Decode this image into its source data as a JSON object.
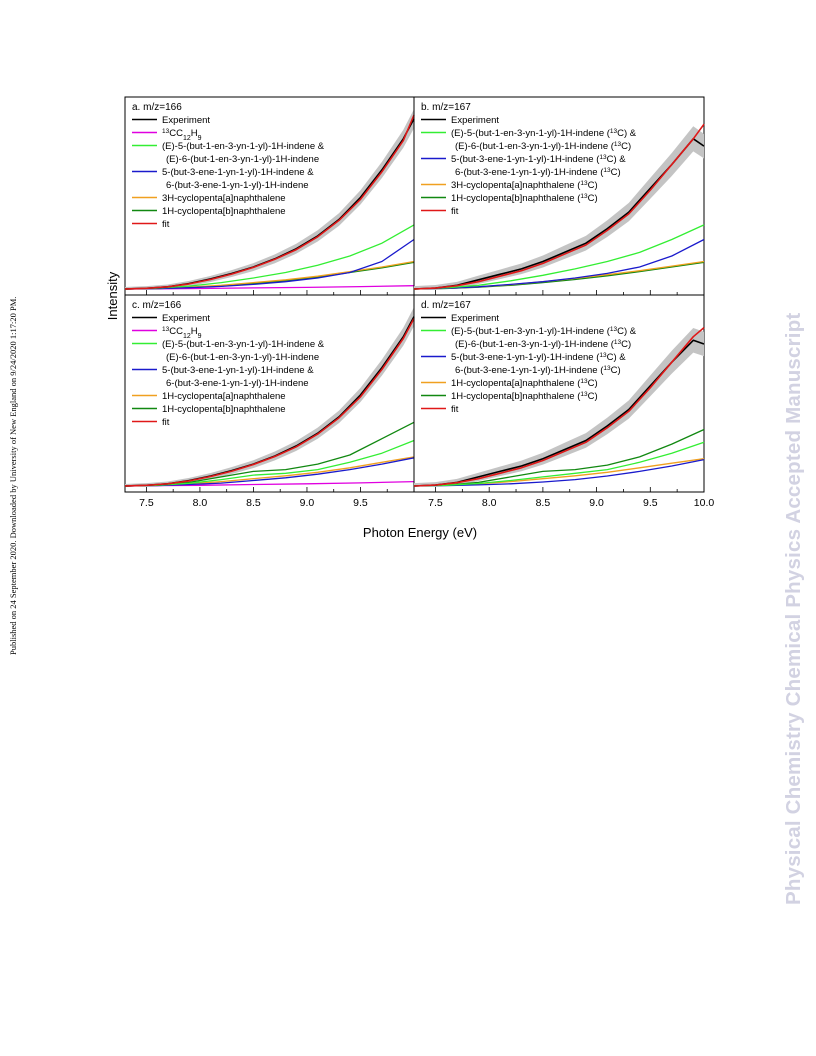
{
  "side_note": "Published on 24 September 2020. Downloaded by University of New England on 9/24/2020 1:17:20 PM.",
  "watermark": "Physical Chemistry Chemical Physics Accepted Manuscript",
  "figure": {
    "ylabel": "Intensity",
    "xlabel": "Photon Energy (eV)"
  },
  "colors": {
    "experiment": "#000000",
    "band": "#c4c4c4",
    "c13cc12h9": "#e000e0",
    "green_light": "#33ee33",
    "blue": "#1a1acc",
    "orange": "#f0a020",
    "green_dark": "#118811",
    "fit": "#e01818"
  },
  "chart_data": [
    {
      "type": "line",
      "panel": "a",
      "title": "a. m/z=166",
      "xlim": [
        7.3,
        10.0
      ],
      "x_ticks": [],
      "legend": [
        {
          "key": "experiment",
          "label": "Experiment"
        },
        {
          "key": "c13cc12h9",
          "label_sup": "13",
          "label": "CC",
          "label_sub1": "12",
          "label_mid": "H",
          "label_sub2": "9"
        },
        {
          "key": "green_light",
          "label": "(E)-5-(but-1-en-3-yn-1-yl)-1H-indene &",
          "label2": "(E)-6-(but-1-en-3-yn-1-yl)-1H-indene"
        },
        {
          "key": "blue",
          "label": "5-(but-3-ene-1-yn-1-yl)-1H-indene &",
          "label2": "6-(but-3-ene-1-yn-1-yl)-1H-indene"
        },
        {
          "key": "orange",
          "label": "3H-cyclopenta[a]naphthalene"
        },
        {
          "key": "green_dark",
          "label": "1H-cyclopenta[b]naphthalene"
        },
        {
          "key": "fit",
          "label": "fit"
        }
      ],
      "series": [
        {
          "key": "experiment",
          "x": [
            7.3,
            7.5,
            7.7,
            7.9,
            8.1,
            8.3,
            8.5,
            8.7,
            8.9,
            9.1,
            9.3,
            9.5,
            9.7,
            9.9,
            10.0
          ],
          "y": [
            0,
            0.004,
            0.012,
            0.03,
            0.055,
            0.085,
            0.12,
            0.165,
            0.22,
            0.29,
            0.38,
            0.5,
            0.65,
            0.82,
            0.93
          ],
          "band": 0.05
        },
        {
          "key": "c13cc12h9",
          "x": [
            7.3,
            7.6,
            8.0,
            8.5,
            9.0,
            9.5,
            10.0
          ],
          "y": [
            0,
            0.001,
            0.003,
            0.006,
            0.009,
            0.013,
            0.018
          ]
        },
        {
          "key": "green_light",
          "x": [
            7.3,
            7.6,
            7.9,
            8.2,
            8.5,
            8.8,
            9.1,
            9.4,
            9.7,
            10.0
          ],
          "y": [
            0,
            0.005,
            0.016,
            0.035,
            0.06,
            0.09,
            0.13,
            0.18,
            0.25,
            0.35
          ]
        },
        {
          "key": "blue",
          "x": [
            7.3,
            7.6,
            7.9,
            8.2,
            8.5,
            8.8,
            9.1,
            9.4,
            9.7,
            10.0
          ],
          "y": [
            0,
            0.002,
            0.007,
            0.014,
            0.025,
            0.04,
            0.06,
            0.09,
            0.15,
            0.27
          ]
        },
        {
          "key": "orange",
          "x": [
            7.3,
            7.6,
            7.9,
            8.2,
            8.5,
            8.8,
            9.1,
            9.4,
            9.7,
            10.0
          ],
          "y": [
            0,
            0.003,
            0.01,
            0.02,
            0.035,
            0.05,
            0.07,
            0.095,
            0.12,
            0.15
          ]
        },
        {
          "key": "green_dark",
          "x": [
            7.3,
            7.6,
            7.9,
            8.2,
            8.5,
            8.8,
            9.1,
            9.4,
            9.7,
            10.0
          ],
          "y": [
            0,
            0.002,
            0.008,
            0.016,
            0.03,
            0.045,
            0.065,
            0.09,
            0.115,
            0.145
          ]
        },
        {
          "key": "fit",
          "x": [
            7.3,
            7.5,
            7.7,
            7.9,
            8.1,
            8.3,
            8.5,
            8.7,
            8.9,
            9.1,
            9.3,
            9.5,
            9.7,
            9.9,
            10.0
          ],
          "y": [
            0,
            0.004,
            0.012,
            0.028,
            0.052,
            0.082,
            0.118,
            0.162,
            0.215,
            0.285,
            0.375,
            0.49,
            0.64,
            0.81,
            0.95
          ]
        }
      ]
    },
    {
      "type": "line",
      "panel": "b",
      "title": "b. m/z=167",
      "xlim": [
        7.3,
        10.0
      ],
      "x_ticks": [],
      "legend": [
        {
          "key": "experiment",
          "label": "Experiment"
        },
        {
          "key": "green_light",
          "label": "(E)-5-(but-1-en-3-yn-1-yl)-1H-indene (",
          "sup": "13",
          "tail": "C) &",
          "label2": "(E)-6-(but-1-en-3-yn-1-yl)-1H-indene (",
          "sup2": "13",
          "tail2": "C)"
        },
        {
          "key": "blue",
          "label": "5-(but-3-ene-1-yn-1-yl)-1H-indene (",
          "sup": "13",
          "tail": "C) &",
          "label2": "6-(but-3-ene-1-yn-1-yl)-1H-indene (",
          "sup2": "13",
          "tail2": "C)"
        },
        {
          "key": "orange",
          "label": "3H-cyclopenta[a]naphthalene (",
          "sup": "13",
          "tail": "C)"
        },
        {
          "key": "green_dark",
          "label": "1H-cyclopenta[b]naphthalene (",
          "sup": "13",
          "tail": "C)"
        },
        {
          "key": "fit",
          "label": "fit"
        }
      ],
      "series": [
        {
          "key": "experiment",
          "x": [
            7.3,
            7.5,
            7.7,
            7.9,
            8.1,
            8.3,
            8.5,
            8.7,
            8.9,
            9.1,
            9.3,
            9.5,
            9.7,
            9.9,
            10.0
          ],
          "y": [
            0,
            0.005,
            0.02,
            0.05,
            0.08,
            0.11,
            0.15,
            0.2,
            0.25,
            0.33,
            0.42,
            0.55,
            0.68,
            0.82,
            0.78
          ],
          "band": 0.07
        },
        {
          "key": "green_light",
          "x": [
            7.3,
            7.6,
            7.9,
            8.2,
            8.5,
            8.8,
            9.1,
            9.4,
            9.7,
            10.0
          ],
          "y": [
            0,
            0.006,
            0.02,
            0.045,
            0.075,
            0.11,
            0.15,
            0.2,
            0.27,
            0.35
          ]
        },
        {
          "key": "blue",
          "x": [
            7.3,
            7.6,
            7.9,
            8.2,
            8.5,
            8.8,
            9.1,
            9.4,
            9.7,
            10.0
          ],
          "y": [
            0,
            0.004,
            0.012,
            0.025,
            0.04,
            0.06,
            0.085,
            0.12,
            0.18,
            0.27
          ]
        },
        {
          "key": "orange",
          "x": [
            7.3,
            7.6,
            7.9,
            8.2,
            8.5,
            8.8,
            9.1,
            9.4,
            9.7,
            10.0
          ],
          "y": [
            0,
            0.004,
            0.012,
            0.024,
            0.04,
            0.058,
            0.078,
            0.1,
            0.125,
            0.15
          ]
        },
        {
          "key": "green_dark",
          "x": [
            7.3,
            7.6,
            7.9,
            8.2,
            8.5,
            8.8,
            9.1,
            9.4,
            9.7,
            10.0
          ],
          "y": [
            0,
            0.003,
            0.01,
            0.02,
            0.035,
            0.052,
            0.072,
            0.095,
            0.12,
            0.145
          ]
        },
        {
          "key": "fit",
          "x": [
            7.3,
            7.5,
            7.7,
            7.9,
            8.1,
            8.3,
            8.5,
            8.7,
            8.9,
            9.1,
            9.3,
            9.5,
            9.7,
            9.9,
            10.0
          ],
          "y": [
            0,
            0.005,
            0.018,
            0.04,
            0.07,
            0.1,
            0.14,
            0.19,
            0.24,
            0.32,
            0.41,
            0.54,
            0.68,
            0.82,
            0.9
          ]
        }
      ]
    },
    {
      "type": "line",
      "panel": "c",
      "title": "c. m/z=166",
      "xlim": [
        7.3,
        10.0
      ],
      "x_ticks": [
        "7.5",
        "8.0",
        "8.5",
        "9.0",
        "9.5"
      ],
      "legend": [
        {
          "key": "experiment",
          "label": "Experiment"
        },
        {
          "key": "c13cc12h9",
          "label_sup": "13",
          "label": "CC",
          "label_sub1": "12",
          "label_mid": "H",
          "label_sub2": "9"
        },
        {
          "key": "green_light",
          "label": "(E)-5-(but-1-en-3-yn-1-yl)-1H-indene &",
          "label2": "(E)-6-(but-1-en-3-yn-1-yl)-1H-indene"
        },
        {
          "key": "blue",
          "label": "5-(but-3-ene-1-yn-1-yl)-1H-indene &",
          "label2": "6-(but-3-ene-1-yn-1-yl)-1H-indene"
        },
        {
          "key": "orange",
          "label": "1H-cyclopenta[a]naphthalene"
        },
        {
          "key": "green_dark",
          "label": "1H-cyclopenta[b]naphthalene"
        },
        {
          "key": "fit",
          "label": "fit"
        }
      ],
      "series": [
        {
          "key": "experiment",
          "x": [
            7.3,
            7.5,
            7.7,
            7.9,
            8.1,
            8.3,
            8.5,
            8.7,
            8.9,
            9.1,
            9.3,
            9.5,
            9.7,
            9.9,
            10.0
          ],
          "y": [
            0,
            0.004,
            0.012,
            0.03,
            0.055,
            0.085,
            0.12,
            0.165,
            0.22,
            0.29,
            0.38,
            0.5,
            0.65,
            0.82,
            0.93
          ],
          "band": 0.05
        },
        {
          "key": "c13cc12h9",
          "x": [
            7.3,
            7.6,
            8.0,
            8.5,
            9.0,
            9.5,
            10.0
          ],
          "y": [
            0,
            0.002,
            0.004,
            0.008,
            0.012,
            0.017,
            0.024
          ]
        },
        {
          "key": "green_light",
          "x": [
            7.3,
            7.6,
            7.9,
            8.2,
            8.5,
            8.8,
            9.1,
            9.4,
            9.7,
            10.0
          ],
          "y": [
            0,
            0.004,
            0.015,
            0.035,
            0.06,
            0.07,
            0.09,
            0.13,
            0.18,
            0.25
          ]
        },
        {
          "key": "blue",
          "x": [
            7.3,
            7.6,
            7.9,
            8.2,
            8.5,
            8.8,
            9.1,
            9.4,
            9.7,
            10.0
          ],
          "y": [
            0,
            0.002,
            0.008,
            0.016,
            0.03,
            0.045,
            0.065,
            0.09,
            0.12,
            0.155
          ]
        },
        {
          "key": "orange",
          "x": [
            7.3,
            7.6,
            7.9,
            8.2,
            8.5,
            8.8,
            9.1,
            9.4,
            9.7,
            10.0
          ],
          "y": [
            0,
            0.004,
            0.012,
            0.024,
            0.04,
            0.056,
            0.075,
            0.1,
            0.13,
            0.16
          ]
        },
        {
          "key": "green_dark",
          "x": [
            7.3,
            7.6,
            7.9,
            8.2,
            8.5,
            8.8,
            9.1,
            9.4,
            9.7,
            10.0
          ],
          "y": [
            0,
            0.005,
            0.02,
            0.05,
            0.08,
            0.09,
            0.12,
            0.17,
            0.26,
            0.35
          ]
        },
        {
          "key": "fit",
          "x": [
            7.3,
            7.5,
            7.7,
            7.9,
            8.1,
            8.3,
            8.5,
            8.7,
            8.9,
            9.1,
            9.3,
            9.5,
            9.7,
            9.9,
            10.0
          ],
          "y": [
            0,
            0.004,
            0.012,
            0.028,
            0.052,
            0.082,
            0.118,
            0.162,
            0.215,
            0.285,
            0.375,
            0.49,
            0.64,
            0.81,
            0.92
          ]
        }
      ]
    },
    {
      "type": "line",
      "panel": "d",
      "title": "d. m/z=167",
      "xlim": [
        7.3,
        10.0
      ],
      "x_ticks": [
        "7.5",
        "8.0",
        "8.5",
        "9.0",
        "9.5",
        "10.0"
      ],
      "legend": [
        {
          "key": "experiment",
          "label": "Experiment"
        },
        {
          "key": "green_light",
          "label": "(E)-5-(but-1-en-3-yn-1-yl)-1H-indene (",
          "sup": "13",
          "tail": "C) &",
          "label2": "(E)-6-(but-1-en-3-yn-1-yl)-1H-indene (",
          "sup2": "13",
          "tail2": "C)"
        },
        {
          "key": "blue",
          "label": "5-(but-3-ene-1-yn-1-yl)-1H-indene (",
          "sup": "13",
          "tail": "C) &",
          "label2": "6-(but-3-ene-1-yn-1-yl)-1H-indene (",
          "sup2": "13",
          "tail2": "C)"
        },
        {
          "key": "orange",
          "label": "1H-cyclopenta[a]naphthalene (",
          "sup": "13",
          "tail": "C)"
        },
        {
          "key": "green_dark",
          "label": "1H-cyclopenta[b]naphthalene (",
          "sup": "13",
          "tail": "C)"
        },
        {
          "key": "fit",
          "label": "fit"
        }
      ],
      "series": [
        {
          "key": "experiment",
          "x": [
            7.3,
            7.5,
            7.7,
            7.9,
            8.1,
            8.3,
            8.5,
            8.7,
            8.9,
            9.1,
            9.3,
            9.5,
            9.7,
            9.9,
            10.0
          ],
          "y": [
            0,
            0.005,
            0.02,
            0.05,
            0.08,
            0.11,
            0.15,
            0.2,
            0.25,
            0.33,
            0.42,
            0.55,
            0.68,
            0.8,
            0.78
          ],
          "band": 0.07
        },
        {
          "key": "green_light",
          "x": [
            7.3,
            7.6,
            7.9,
            8.2,
            8.5,
            8.8,
            9.1,
            9.4,
            9.7,
            10.0
          ],
          "y": [
            0,
            0.004,
            0.014,
            0.03,
            0.05,
            0.07,
            0.09,
            0.13,
            0.18,
            0.24
          ]
        },
        {
          "key": "blue",
          "x": [
            7.3,
            7.6,
            7.9,
            8.2,
            8.5,
            8.8,
            9.1,
            9.4,
            9.7,
            10.0
          ],
          "y": [
            0,
            0.002,
            0.006,
            0.012,
            0.022,
            0.035,
            0.055,
            0.08,
            0.11,
            0.145
          ]
        },
        {
          "key": "orange",
          "x": [
            7.3,
            7.6,
            7.9,
            8.2,
            8.5,
            8.8,
            9.1,
            9.4,
            9.7,
            10.0
          ],
          "y": [
            0,
            0.004,
            0.012,
            0.024,
            0.04,
            0.056,
            0.075,
            0.1,
            0.125,
            0.15
          ]
        },
        {
          "key": "green_dark",
          "x": [
            7.3,
            7.6,
            7.9,
            8.2,
            8.5,
            8.8,
            9.1,
            9.4,
            9.7,
            10.0
          ],
          "y": [
            0,
            0.005,
            0.02,
            0.05,
            0.08,
            0.09,
            0.115,
            0.16,
            0.23,
            0.31
          ]
        },
        {
          "key": "fit",
          "x": [
            7.3,
            7.5,
            7.7,
            7.9,
            8.1,
            8.3,
            8.5,
            8.7,
            8.9,
            9.1,
            9.3,
            9.5,
            9.7,
            9.9,
            10.0
          ],
          "y": [
            0,
            0.005,
            0.018,
            0.04,
            0.07,
            0.1,
            0.14,
            0.19,
            0.24,
            0.32,
            0.41,
            0.54,
            0.68,
            0.82,
            0.87
          ]
        }
      ]
    }
  ]
}
